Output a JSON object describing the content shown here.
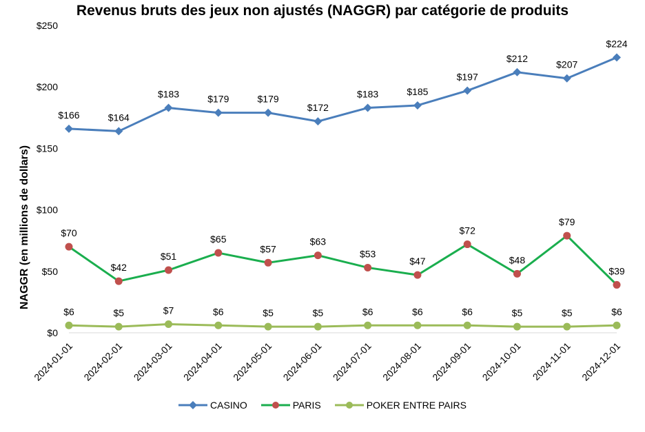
{
  "chart_data": {
    "type": "line",
    "title": "Revenus bruts des jeux non ajustés (NAGGR) par catégorie de produits",
    "xlabel": "",
    "ylabel": "NAGGR (en millions de dollars)",
    "ylim": [
      0,
      250
    ],
    "yticks": [
      0,
      50,
      100,
      150,
      200,
      250
    ],
    "ytick_labels": [
      "$0",
      "$50",
      "$100",
      "$150",
      "$200",
      "$250"
    ],
    "categories": [
      "2024-01-01",
      "2024-02-01",
      "2024-03-01",
      "2024-04-01",
      "2024-05-01",
      "2024-06-01",
      "2024-07-01",
      "2024-08-01",
      "2024-09-01",
      "2024-10-01",
      "2024-11-01",
      "2024-12-01"
    ],
    "legend_position": "bottom",
    "series": [
      {
        "name": "CASINO",
        "color": "#4A7EBB",
        "marker": "diamond",
        "values": [
          166,
          164,
          183,
          179,
          179,
          172,
          183,
          185,
          197,
          212,
          207,
          224
        ],
        "labels": [
          "$166",
          "$164",
          "$183",
          "$179",
          "$179",
          "$172",
          "$183",
          "$185",
          "$197",
          "$212",
          "$207",
          "$224"
        ]
      },
      {
        "name": "PARIS",
        "color": "#1AAE4E",
        "marker_color": "#C0504D",
        "marker": "circle",
        "values": [
          70,
          42,
          51,
          65,
          57,
          63,
          53,
          47,
          72,
          48,
          79,
          39
        ],
        "labels": [
          "$70",
          "$42",
          "$51",
          "$65",
          "$57",
          "$63",
          "$53",
          "$47",
          "$72",
          "$48",
          "$79",
          "$39"
        ]
      },
      {
        "name": "POKER ENTRE PAIRS",
        "color": "#9BBB59",
        "marker": "circle",
        "values": [
          6,
          5,
          7,
          6,
          5,
          5,
          6,
          6,
          6,
          5,
          5,
          6
        ],
        "labels": [
          "$6",
          "$5",
          "$7",
          "$6",
          "$5",
          "$5",
          "$6",
          "$6",
          "$6",
          "$5",
          "$5",
          "$6"
        ]
      }
    ]
  }
}
